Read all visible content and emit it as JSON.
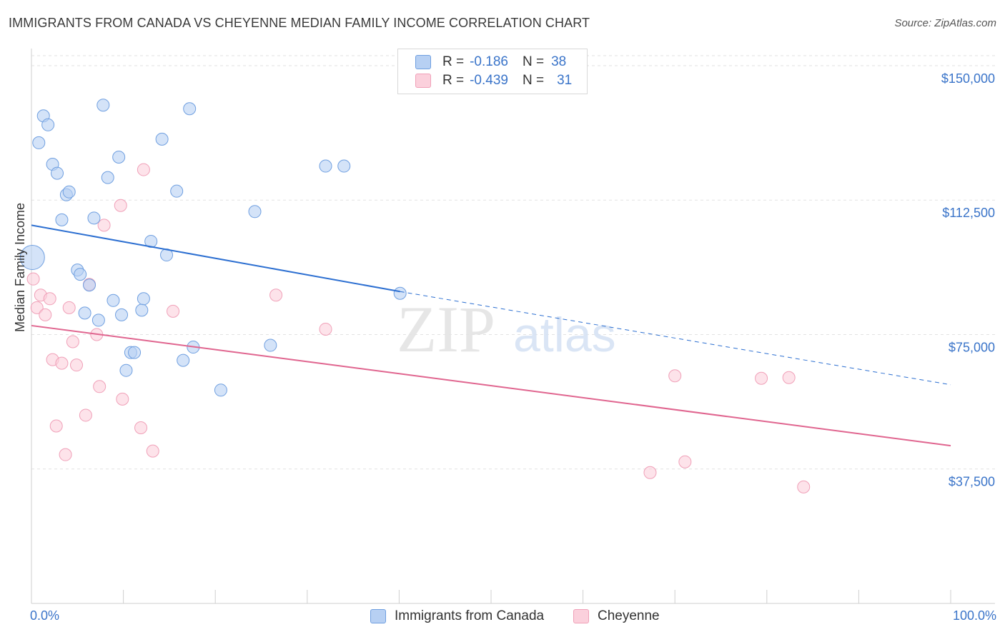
{
  "title": "IMMIGRANTS FROM CANADA VS CHEYENNE MEDIAN FAMILY INCOME CORRELATION CHART",
  "source": "Source: ZipAtlas.com",
  "watermark": {
    "zip": "ZIP",
    "atlas": "atlas"
  },
  "legend": {
    "rows": [
      {
        "r_label": "R =",
        "r_value": "-0.186",
        "n_label": "N =",
        "n_value": "38"
      },
      {
        "r_label": "R =",
        "r_value": "-0.439",
        "n_label": "N =",
        "n_value": "31"
      }
    ]
  },
  "x_axis": {
    "min_label": "0.0%",
    "max_label": "100.0%"
  },
  "chart_data": {
    "type": "scatter",
    "title": "IMMIGRANTS FROM CANADA VS CHEYENNE MEDIAN FAMILY INCOME CORRELATION CHART",
    "xlabel": "",
    "ylabel": "Median Family Income",
    "xlim": [
      0,
      100
    ],
    "ylim": [
      0,
      155000
    ],
    "yticks": [
      37500,
      75000,
      112500,
      150000
    ],
    "ytick_labels": [
      "$37,500",
      "$75,000",
      "$112,500",
      "$150,000"
    ],
    "xtick_labels": [
      "0.0%",
      "100.0%"
    ],
    "legend_position": "top-center",
    "grid": true,
    "colors": {
      "canada": "#6f9fe0",
      "cheyenne": "#f0a0b8",
      "canada_line": "#2c6fd1",
      "cheyenne_line": "#e0658f",
      "tick_label": "#3a74c9"
    },
    "series": [
      {
        "name": "Immigrants from Canada",
        "r": -0.186,
        "n": 38,
        "trend": {
          "x0": 0,
          "y0": 105500,
          "x1": 40.1,
          "y1": 87000,
          "x_dash_end": 100,
          "y_dash_end": 61000
        },
        "points": [
          {
            "x": 0.1,
            "y": 96500,
            "big": true
          },
          {
            "x": 0.8,
            "y": 128500
          },
          {
            "x": 1.3,
            "y": 136000
          },
          {
            "x": 1.8,
            "y": 133500
          },
          {
            "x": 2.3,
            "y": 122500
          },
          {
            "x": 2.8,
            "y": 120000
          },
          {
            "x": 3.3,
            "y": 107000
          },
          {
            "x": 3.8,
            "y": 114000
          },
          {
            "x": 4.1,
            "y": 114800
          },
          {
            "x": 5.0,
            "y": 93000
          },
          {
            "x": 5.3,
            "y": 91800
          },
          {
            "x": 5.8,
            "y": 81000
          },
          {
            "x": 6.3,
            "y": 88800
          },
          {
            "x": 6.8,
            "y": 107500
          },
          {
            "x": 7.3,
            "y": 79000
          },
          {
            "x": 7.8,
            "y": 139000
          },
          {
            "x": 8.3,
            "y": 118800
          },
          {
            "x": 8.9,
            "y": 84500
          },
          {
            "x": 9.5,
            "y": 124500
          },
          {
            "x": 9.8,
            "y": 80500
          },
          {
            "x": 10.8,
            "y": 70000
          },
          {
            "x": 11.2,
            "y": 70000
          },
          {
            "x": 10.3,
            "y": 65000
          },
          {
            "x": 12.0,
            "y": 81800
          },
          {
            "x": 12.2,
            "y": 85000
          },
          {
            "x": 13.0,
            "y": 101000
          },
          {
            "x": 14.2,
            "y": 129500
          },
          {
            "x": 14.7,
            "y": 97200
          },
          {
            "x": 15.8,
            "y": 115000
          },
          {
            "x": 16.5,
            "y": 67800
          },
          {
            "x": 17.6,
            "y": 71500
          },
          {
            "x": 17.2,
            "y": 138000
          },
          {
            "x": 20.6,
            "y": 59500
          },
          {
            "x": 24.3,
            "y": 109300
          },
          {
            "x": 26.0,
            "y": 72000
          },
          {
            "x": 32.0,
            "y": 122000
          },
          {
            "x": 34.0,
            "y": 122000
          },
          {
            "x": 40.1,
            "y": 86500
          }
        ]
      },
      {
        "name": "Cheyenne",
        "r": -0.439,
        "n": 31,
        "trend": {
          "x0": 0,
          "y0": 77500,
          "x1": 100,
          "y1": 44000
        },
        "points": [
          {
            "x": 0.2,
            "y": 90500
          },
          {
            "x": 0.6,
            "y": 82500
          },
          {
            "x": 1.0,
            "y": 86000
          },
          {
            "x": 1.5,
            "y": 80500
          },
          {
            "x": 2.0,
            "y": 85000
          },
          {
            "x": 2.3,
            "y": 68000
          },
          {
            "x": 2.7,
            "y": 49500
          },
          {
            "x": 3.3,
            "y": 67000
          },
          {
            "x": 3.7,
            "y": 41500
          },
          {
            "x": 4.1,
            "y": 82500
          },
          {
            "x": 4.5,
            "y": 73000
          },
          {
            "x": 4.9,
            "y": 66500
          },
          {
            "x": 5.9,
            "y": 52500
          },
          {
            "x": 6.3,
            "y": 89000
          },
          {
            "x": 7.1,
            "y": 75000
          },
          {
            "x": 7.4,
            "y": 60500
          },
          {
            "x": 7.9,
            "y": 105500
          },
          {
            "x": 9.7,
            "y": 111000
          },
          {
            "x": 9.9,
            "y": 57000
          },
          {
            "x": 11.9,
            "y": 49000
          },
          {
            "x": 12.2,
            "y": 121000
          },
          {
            "x": 13.2,
            "y": 42500
          },
          {
            "x": 15.4,
            "y": 81500
          },
          {
            "x": 26.6,
            "y": 86000
          },
          {
            "x": 32.0,
            "y": 76500
          },
          {
            "x": 67.3,
            "y": 36500
          },
          {
            "x": 70.0,
            "y": 63500
          },
          {
            "x": 71.1,
            "y": 39500
          },
          {
            "x": 79.4,
            "y": 62800
          },
          {
            "x": 82.4,
            "y": 63000
          },
          {
            "x": 84.0,
            "y": 32500
          }
        ]
      }
    ]
  }
}
